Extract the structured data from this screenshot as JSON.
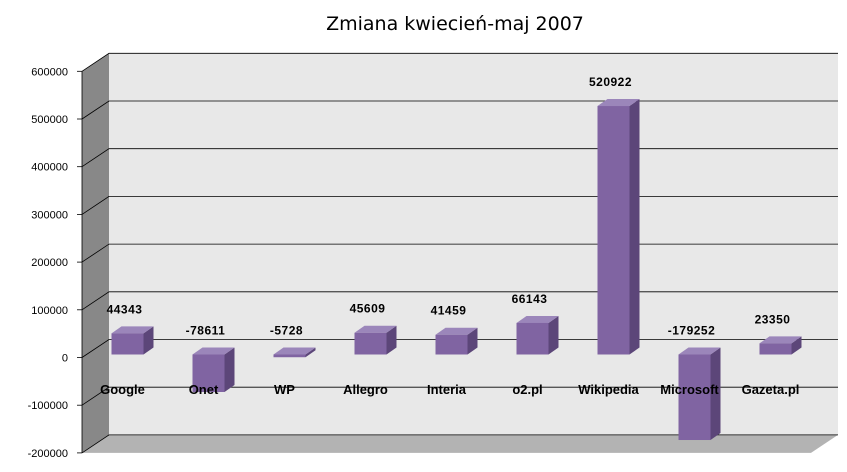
{
  "chart_data": {
    "type": "bar",
    "title": "Zmiana kwiecień-maj 2007",
    "categories": [
      "Google",
      "Onet",
      "WP",
      "Allegro",
      "Interia",
      "o2.pl",
      "Wikipedia",
      "Microsoft",
      "Gazeta.pl"
    ],
    "values": [
      44343,
      -78611,
      -5728,
      45609,
      41459,
      66143,
      520922,
      -179252,
      23350
    ],
    "data_labels": [
      "44343",
      "-78611",
      "-5728",
      "45609",
      "41459",
      "66143",
      "520922",
      "-179252",
      "23350"
    ],
    "yticks": [
      "600000",
      "500000",
      "400000",
      "300000",
      "200000",
      "100000",
      "0",
      "-100000",
      "-200000"
    ],
    "ylim": [
      -200000,
      600000
    ],
    "grid": true,
    "legend": "none",
    "colors": {
      "bar_front": "#8064a2",
      "bar_side": "#5c4679",
      "bar_top": "#9b86ba",
      "wall": "#e8e8e8",
      "side_wall": "#888888",
      "floor": "#b3b3b3",
      "grid": "#000000"
    }
  }
}
